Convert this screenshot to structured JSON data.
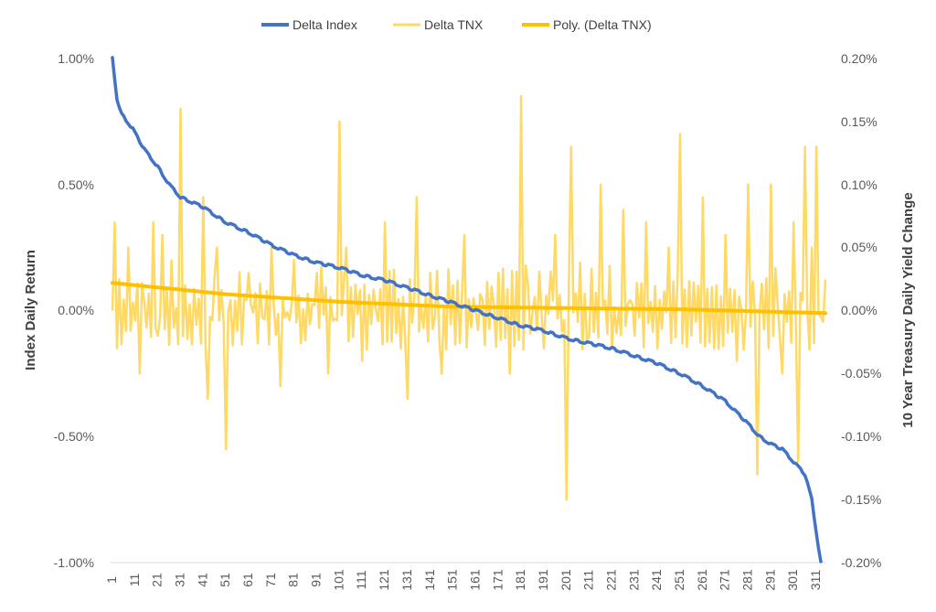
{
  "chart_data": {
    "type": "line",
    "legend_position": "top-center",
    "legend": [
      {
        "name": "Delta Index",
        "color": "#4472C4"
      },
      {
        "name": "Delta TNX",
        "color": "#FFD966"
      },
      {
        "name": "Poly. (Delta TNX)",
        "color": "#FFC000"
      }
    ],
    "y_left": {
      "title": "Index Daily Return",
      "range": [
        -1.0,
        1.0
      ],
      "ticks": [
        "1.00%",
        "0.50%",
        "0.00%",
        "-0.50%",
        "-1.00%"
      ],
      "tick_values": [
        1.0,
        0.5,
        0.0,
        -0.5,
        -1.0
      ],
      "unit": "%"
    },
    "y_right": {
      "title": "10 Year Treasury Daily Yield Change",
      "range": [
        -0.2,
        0.2
      ],
      "ticks": [
        "0.20%",
        "0.15%",
        "0.10%",
        "0.05%",
        "0.00%",
        "-0.05%",
        "-0.10%",
        "-0.15%",
        "-0.20%"
      ],
      "tick_values": [
        0.2,
        0.15,
        0.1,
        0.05,
        0.0,
        -0.05,
        -0.1,
        -0.15,
        -0.2
      ],
      "unit": "%"
    },
    "x": {
      "range": [
        1,
        315
      ],
      "tick_labels": [
        "1",
        "11",
        "21",
        "31",
        "41",
        "51",
        "61",
        "71",
        "81",
        "91",
        "101",
        "111",
        "121",
        "131",
        "141",
        "151",
        "161",
        "171",
        "181",
        "191",
        "201",
        "211",
        "221",
        "231",
        "241",
        "251",
        "261",
        "271",
        "281",
        "291",
        "301",
        "311"
      ],
      "tick_values": [
        1,
        11,
        21,
        31,
        41,
        51,
        61,
        71,
        81,
        91,
        101,
        111,
        121,
        131,
        141,
        151,
        161,
        171,
        181,
        191,
        201,
        211,
        221,
        231,
        241,
        251,
        261,
        271,
        281,
        291,
        301,
        311
      ]
    },
    "series": [
      {
        "name": "Delta Index",
        "axis": "left",
        "style": "line",
        "anchor_x": [
          1,
          2,
          3,
          5,
          10,
          15,
          21,
          26,
          31,
          41,
          51,
          61,
          71,
          81,
          91,
          101,
          111,
          121,
          131,
          141,
          151,
          161,
          171,
          181,
          191,
          201,
          211,
          221,
          231,
          241,
          251,
          261,
          271,
          281,
          286,
          291,
          296,
          301,
          306,
          309,
          311,
          313
        ],
        "anchor_y": [
          1.0,
          0.92,
          0.84,
          0.78,
          0.72,
          0.64,
          0.57,
          0.5,
          0.45,
          0.41,
          0.35,
          0.31,
          0.26,
          0.22,
          0.19,
          0.17,
          0.14,
          0.12,
          0.09,
          0.06,
          0.03,
          0.0,
          -0.03,
          -0.06,
          -0.08,
          -0.11,
          -0.13,
          -0.15,
          -0.18,
          -0.21,
          -0.25,
          -0.3,
          -0.36,
          -0.45,
          -0.5,
          -0.53,
          -0.55,
          -0.6,
          -0.65,
          -0.75,
          -0.88,
          -1.0
        ]
      },
      {
        "name": "Delta TNX",
        "axis": "right",
        "style": "line",
        "spikes_x": [
          1,
          2,
          3,
          8,
          13,
          19,
          21,
          23,
          27,
          31,
          33,
          41,
          43,
          47,
          51,
          61,
          71,
          75,
          81,
          91,
          96,
          101,
          104,
          111,
          121,
          131,
          135,
          141,
          146,
          151,
          156,
          161,
          171,
          176,
          181,
          184,
          191,
          196,
          201,
          203,
          211,
          216,
          221,
          226,
          231,
          236,
          241,
          246,
          251,
          256,
          261,
          266,
          271,
          276,
          281,
          285,
          291,
          296,
          301,
          303,
          306,
          309,
          311,
          313
        ],
        "spikes_y": [
          0.0,
          0.07,
          -0.03,
          0.05,
          -0.05,
          0.07,
          -0.02,
          0.06,
          0.04,
          0.16,
          0.02,
          0.09,
          -0.07,
          0.05,
          -0.11,
          0.03,
          0.05,
          -0.06,
          0.04,
          0.03,
          -0.05,
          0.15,
          0.05,
          -0.04,
          0.07,
          -0.07,
          0.09,
          0.03,
          -0.05,
          0.02,
          0.06,
          0.0,
          0.03,
          -0.05,
          0.17,
          0.02,
          -0.03,
          0.06,
          -0.15,
          0.13,
          -0.02,
          0.1,
          -0.03,
          0.08,
          -0.02,
          0.07,
          -0.03,
          0.05,
          0.14,
          -0.02,
          0.09,
          -0.03,
          0.06,
          -0.04,
          0.1,
          -0.13,
          0.1,
          -0.05,
          0.07,
          -0.12,
          0.13,
          0.05,
          0.13,
          -0.005
        ],
        "noise_amplitude": 0.035,
        "range_note": "approximately -0.16% to 0.17%"
      },
      {
        "name": "Poly. (Delta TNX)",
        "axis": "right",
        "style": "trendline",
        "anchor_x": [
          1,
          51,
          101,
          151,
          201,
          251,
          315
        ],
        "anchor_y": [
          0.022,
          0.013,
          0.007,
          0.003,
          0.002,
          0.001,
          -0.002
        ]
      }
    ]
  }
}
